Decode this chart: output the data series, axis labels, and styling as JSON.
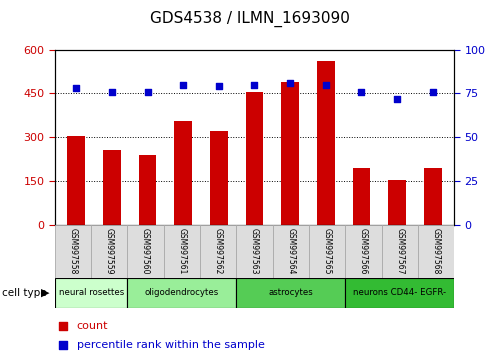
{
  "title": "GDS4538 / ILMN_1693090",
  "samples": [
    "GSM997558",
    "GSM997559",
    "GSM997560",
    "GSM997561",
    "GSM997562",
    "GSM997563",
    "GSM997564",
    "GSM997565",
    "GSM997566",
    "GSM997567",
    "GSM997568"
  ],
  "counts": [
    305,
    255,
    240,
    355,
    320,
    455,
    490,
    560,
    195,
    155,
    195
  ],
  "percentiles": [
    78,
    76,
    76,
    80,
    79,
    80,
    81,
    80,
    76,
    72,
    76
  ],
  "cell_types": [
    {
      "label": "neural rosettes",
      "start": 0,
      "end": 2,
      "color": "#ccffcc"
    },
    {
      "label": "oligodendrocytes",
      "start": 2,
      "end": 5,
      "color": "#99ee99"
    },
    {
      "label": "astrocytes",
      "start": 5,
      "end": 8,
      "color": "#55cc55"
    },
    {
      "label": "neurons CD44- EGFR-",
      "start": 8,
      "end": 11,
      "color": "#33bb33"
    }
  ],
  "ylim_left": [
    0,
    600
  ],
  "ylim_right": [
    0,
    100
  ],
  "yticks_left": [
    0,
    150,
    300,
    450,
    600
  ],
  "yticks_right": [
    0,
    25,
    50,
    75,
    100
  ],
  "bar_color": "#cc0000",
  "dot_color": "#0000cc",
  "bg_color": "#ffffff",
  "plot_bg": "#ffffff",
  "left_tick_color": "#cc0000",
  "right_tick_color": "#0000cc",
  "legend_count_color": "#cc0000",
  "legend_percentile_color": "#0000cc",
  "cell_type_label": "cell type",
  "legend_count": "count",
  "legend_percentile": "percentile rank within the sample",
  "sample_box_color": "#dddddd",
  "sample_box_edge": "#aaaaaa"
}
